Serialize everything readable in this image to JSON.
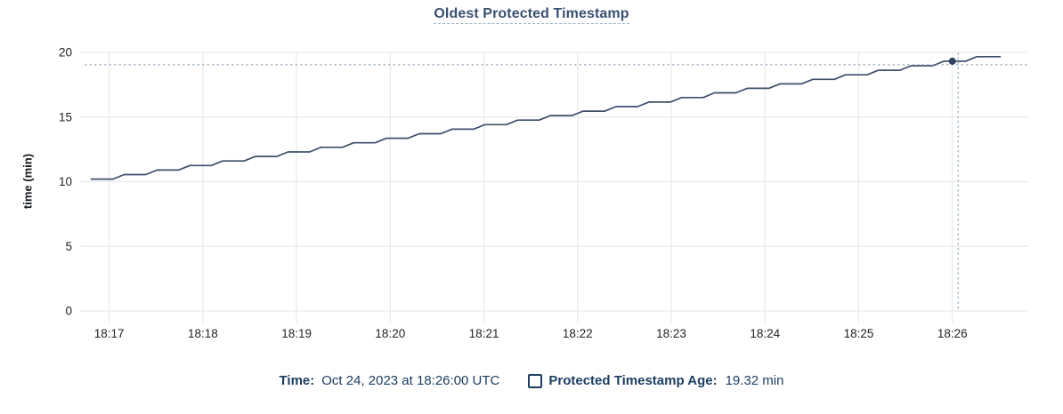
{
  "chart": {
    "title": "Oldest Protected Timestamp",
    "y_axis_label": "time (min)"
  },
  "legend": {
    "time_label": "Time:",
    "time_value": "Oct 24, 2023 at 18:26:00 UTC",
    "series_label": "Protected Timestamp Age:",
    "series_value": "19.32 min"
  },
  "colors": {
    "title_text": "#3a5070",
    "legend_text": "#1d3e63",
    "axis_text": "#202327",
    "grid": "#e9eaeb",
    "crosshair": "#9fb0bf",
    "line": "#3f4f6a",
    "marker": "#2e4160"
  },
  "chart_data": {
    "type": "line",
    "title": "Oldest Protected Timestamp",
    "xlabel": "",
    "ylabel": "time (min)",
    "ylim": [
      0,
      20
    ],
    "y_ticks": [
      0,
      5,
      10,
      15,
      20
    ],
    "x_ticks": [
      "18:17",
      "18:18",
      "18:19",
      "18:20",
      "18:21",
      "18:22",
      "18:23",
      "18:24",
      "18:25",
      "18:26"
    ],
    "x_unit": "clock time UTC (values below are minutes after 18:00)",
    "x_domain_minutes": [
      16.69,
      26.81
    ],
    "grid": true,
    "legend_position": "bottom",
    "series": [
      {
        "name": "Protected Timestamp Age",
        "unit": "min",
        "points": [
          [
            16.81,
            10.2
          ],
          [
            17.04,
            10.2
          ],
          [
            17.16,
            10.55
          ],
          [
            17.39,
            10.55
          ],
          [
            17.51,
            10.9
          ],
          [
            17.74,
            10.9
          ],
          [
            17.86,
            11.25
          ],
          [
            18.09,
            11.25
          ],
          [
            18.21,
            11.6
          ],
          [
            18.44,
            11.6
          ],
          [
            18.56,
            11.95
          ],
          [
            18.79,
            11.95
          ],
          [
            18.91,
            12.3
          ],
          [
            19.14,
            12.3
          ],
          [
            19.26,
            12.66
          ],
          [
            19.49,
            12.66
          ],
          [
            19.61,
            13.01
          ],
          [
            19.84,
            13.01
          ],
          [
            19.96,
            13.36
          ],
          [
            20.19,
            13.36
          ],
          [
            20.31,
            13.71
          ],
          [
            20.54,
            13.71
          ],
          [
            20.66,
            14.06
          ],
          [
            20.89,
            14.06
          ],
          [
            21.01,
            14.41
          ],
          [
            21.24,
            14.41
          ],
          [
            21.36,
            14.76
          ],
          [
            21.59,
            14.76
          ],
          [
            21.71,
            15.11
          ],
          [
            21.94,
            15.11
          ],
          [
            22.06,
            15.46
          ],
          [
            22.29,
            15.46
          ],
          [
            22.41,
            15.81
          ],
          [
            22.64,
            15.81
          ],
          [
            22.76,
            16.16
          ],
          [
            22.99,
            16.16
          ],
          [
            23.11,
            16.51
          ],
          [
            23.34,
            16.51
          ],
          [
            23.46,
            16.87
          ],
          [
            23.69,
            16.87
          ],
          [
            23.81,
            17.22
          ],
          [
            24.04,
            17.22
          ],
          [
            24.16,
            17.57
          ],
          [
            24.39,
            17.57
          ],
          [
            24.51,
            17.92
          ],
          [
            24.74,
            17.92
          ],
          [
            24.86,
            18.27
          ],
          [
            25.09,
            18.27
          ],
          [
            25.21,
            18.62
          ],
          [
            25.44,
            18.62
          ],
          [
            25.56,
            18.97
          ],
          [
            25.79,
            18.97
          ],
          [
            25.91,
            19.32
          ],
          [
            26.14,
            19.32
          ],
          [
            26.26,
            19.67
          ],
          [
            26.49,
            19.67
          ],
          [
            26.51,
            19.67
          ]
        ]
      }
    ],
    "hover_point": {
      "time": "18:26:00",
      "t_min": 26.0,
      "value": 19.32,
      "crosshair": true
    }
  }
}
